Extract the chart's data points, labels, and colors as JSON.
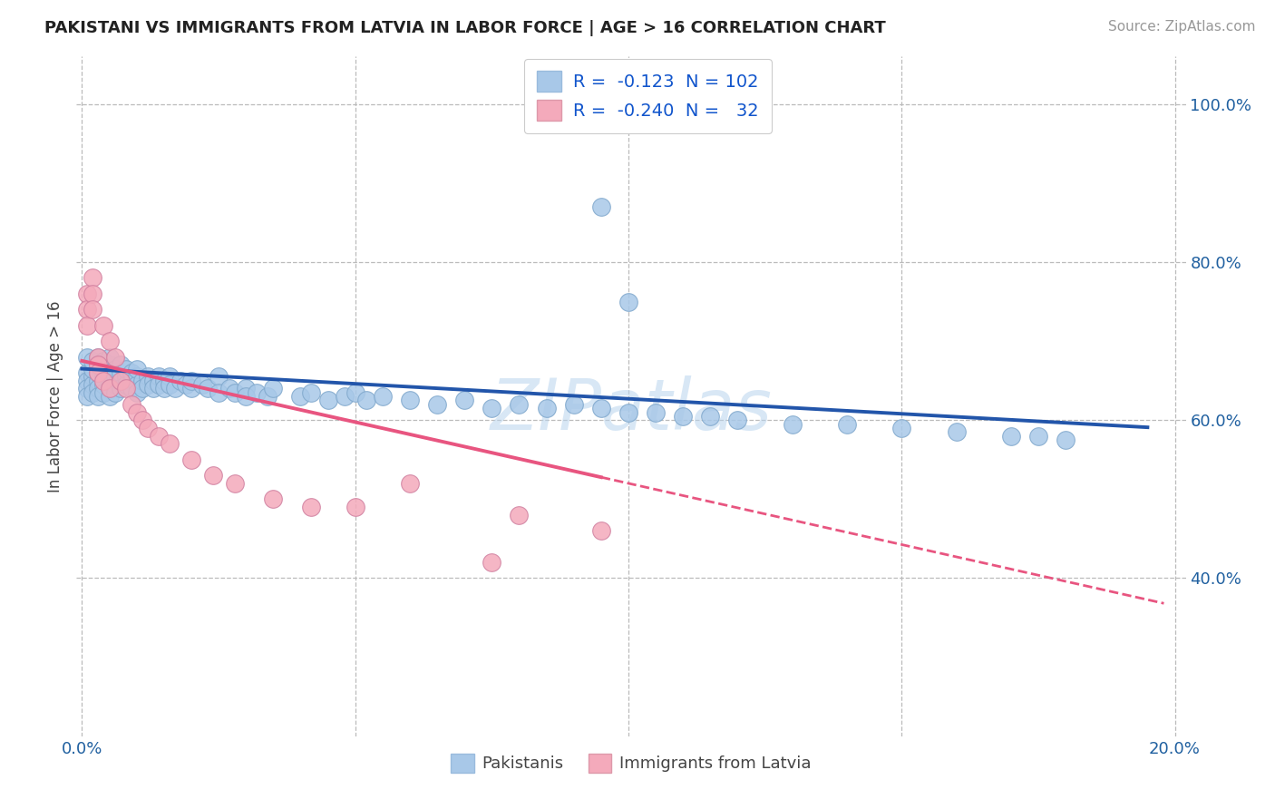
{
  "title": "PAKISTANI VS IMMIGRANTS FROM LATVIA IN LABOR FORCE | AGE > 16 CORRELATION CHART",
  "source": "Source: ZipAtlas.com",
  "ylabel": "In Labor Force | Age > 16",
  "xlim": [
    -0.001,
    0.202
  ],
  "ylim": [
    0.2,
    1.06
  ],
  "yticks": [
    0.4,
    0.6,
    0.8,
    1.0
  ],
  "ytick_labels": [
    "40.0%",
    "60.0%",
    "80.0%",
    "100.0%"
  ],
  "xticks": [
    0.0,
    0.05,
    0.1,
    0.15,
    0.2
  ],
  "xtick_labels": [
    "0.0%",
    "",
    "",
    "",
    "20.0%"
  ],
  "blue_color": "#A8C8E8",
  "pink_color": "#F4AABB",
  "blue_line_color": "#2255AA",
  "pink_line_color": "#E85580",
  "watermark": "ZIPatlas",
  "background_color": "#FFFFFF",
  "grid_color": "#BBBBBB",
  "blue_r_text": "R =  -0.123  N = 102",
  "pink_r_text": "R =  -0.240  N =   32",
  "legend1_label": "Pakistanis",
  "legend2_label": "Immigrants from Latvia",
  "blue_intercept": 0.665,
  "blue_slope": -0.38,
  "pink_intercept": 0.675,
  "pink_slope": -1.55,
  "pakistanis_x": [
    0.001,
    0.001,
    0.001,
    0.001,
    0.001,
    0.002,
    0.002,
    0.002,
    0.002,
    0.002,
    0.003,
    0.003,
    0.003,
    0.003,
    0.003,
    0.003,
    0.004,
    0.004,
    0.004,
    0.004,
    0.004,
    0.005,
    0.005,
    0.005,
    0.005,
    0.005,
    0.005,
    0.006,
    0.006,
    0.006,
    0.006,
    0.007,
    0.007,
    0.007,
    0.007,
    0.008,
    0.008,
    0.008,
    0.009,
    0.009,
    0.009,
    0.01,
    0.01,
    0.01,
    0.01,
    0.011,
    0.011,
    0.012,
    0.012,
    0.013,
    0.013,
    0.014,
    0.014,
    0.015,
    0.015,
    0.016,
    0.016,
    0.017,
    0.018,
    0.019,
    0.02,
    0.02,
    0.022,
    0.023,
    0.025,
    0.025,
    0.027,
    0.028,
    0.03,
    0.03,
    0.032,
    0.034,
    0.035,
    0.04,
    0.042,
    0.045,
    0.048,
    0.05,
    0.052,
    0.055,
    0.06,
    0.065,
    0.07,
    0.075,
    0.08,
    0.085,
    0.09,
    0.095,
    0.1,
    0.105,
    0.11,
    0.115,
    0.12,
    0.13,
    0.14,
    0.15,
    0.16,
    0.17,
    0.175,
    0.18,
    0.095,
    0.1
  ],
  "pakistanis_y": [
    0.66,
    0.65,
    0.64,
    0.63,
    0.68,
    0.655,
    0.645,
    0.665,
    0.635,
    0.675,
    0.65,
    0.66,
    0.64,
    0.67,
    0.63,
    0.68,
    0.655,
    0.645,
    0.665,
    0.635,
    0.675,
    0.65,
    0.66,
    0.64,
    0.67,
    0.63,
    0.68,
    0.655,
    0.645,
    0.665,
    0.635,
    0.65,
    0.66,
    0.64,
    0.67,
    0.655,
    0.645,
    0.665,
    0.65,
    0.66,
    0.64,
    0.655,
    0.645,
    0.665,
    0.635,
    0.65,
    0.64,
    0.655,
    0.645,
    0.65,
    0.64,
    0.655,
    0.645,
    0.65,
    0.64,
    0.655,
    0.645,
    0.64,
    0.65,
    0.645,
    0.64,
    0.65,
    0.645,
    0.64,
    0.655,
    0.635,
    0.64,
    0.635,
    0.64,
    0.63,
    0.635,
    0.63,
    0.64,
    0.63,
    0.635,
    0.625,
    0.63,
    0.635,
    0.625,
    0.63,
    0.625,
    0.62,
    0.625,
    0.615,
    0.62,
    0.615,
    0.62,
    0.615,
    0.61,
    0.61,
    0.605,
    0.605,
    0.6,
    0.595,
    0.595,
    0.59,
    0.585,
    0.58,
    0.58,
    0.575,
    0.87,
    0.75
  ],
  "latvia_x": [
    0.001,
    0.001,
    0.001,
    0.002,
    0.002,
    0.002,
    0.003,
    0.003,
    0.003,
    0.004,
    0.004,
    0.005,
    0.005,
    0.006,
    0.007,
    0.008,
    0.009,
    0.01,
    0.011,
    0.012,
    0.014,
    0.016,
    0.02,
    0.024,
    0.028,
    0.035,
    0.042,
    0.05,
    0.06,
    0.08,
    0.075,
    0.095
  ],
  "latvia_y": [
    0.76,
    0.74,
    0.72,
    0.78,
    0.76,
    0.74,
    0.68,
    0.67,
    0.66,
    0.72,
    0.65,
    0.7,
    0.64,
    0.68,
    0.65,
    0.64,
    0.62,
    0.61,
    0.6,
    0.59,
    0.58,
    0.57,
    0.55,
    0.53,
    0.52,
    0.5,
    0.49,
    0.49,
    0.52,
    0.48,
    0.42,
    0.46
  ]
}
